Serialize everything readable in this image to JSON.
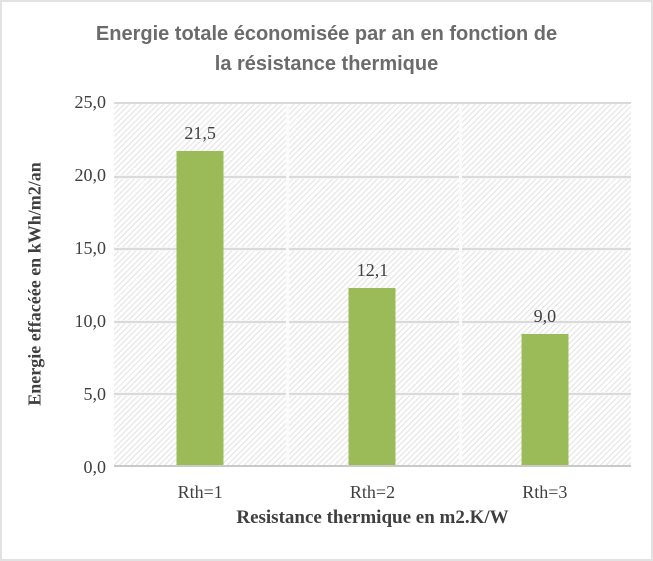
{
  "header": {
    "title_line1": "Energie totale économisée par an en fonction de",
    "title_line2": "la résistance thermique"
  },
  "chart_data": {
    "type": "bar",
    "title": "Energie totale économisée par an en fonction de la résistance thermique",
    "categories": [
      "Rth=1",
      "Rth=2",
      "Rth=3"
    ],
    "values": [
      21.5,
      12.1,
      9.0
    ],
    "value_labels": [
      "21,5",
      "12,1",
      "9,0"
    ],
    "xlabel": "Resistance thermique en m2.K/W",
    "ylabel": "Energie effacéée en kWh/m2/an",
    "ylim": [
      0,
      25
    ],
    "ytick_interval": 5,
    "ytick_labels": [
      "25,0",
      "20,0",
      "15,0",
      "10,0",
      "5,0",
      "0,0"
    ],
    "grid": "horizontal gridlines every 5 units, vertical category separators, hatched plot background",
    "legend": "none",
    "colors": {
      "bar": "#9bbb59",
      "title_text": "#6b6b6b",
      "axis_text": "#3f3f3f",
      "gridline": "#dadada"
    }
  }
}
